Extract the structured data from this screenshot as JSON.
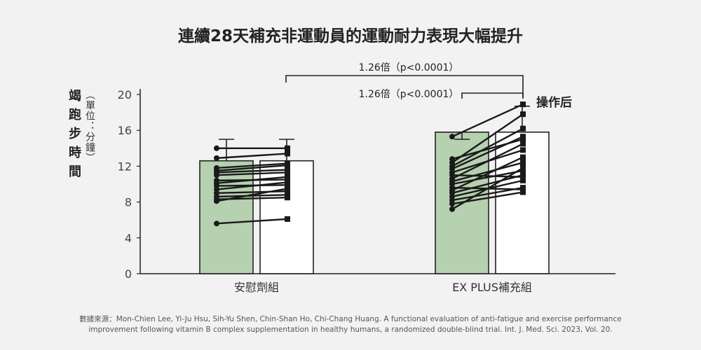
{
  "chart_data": {
    "type": "bar",
    "title": "連續28天補充非運動員的運動耐力表現大幅提升",
    "ylabel": "竭跑步時間",
    "yunit": "（單位：分鐘）",
    "ylim": [
      0,
      20
    ],
    "yticks": [
      0,
      4,
      8,
      12,
      16,
      20
    ],
    "categories": [
      "安慰劑組",
      "EX PLUS補充組"
    ],
    "series": [
      {
        "values": [
          12.6,
          15.8
        ],
        "color": "#b5d1b0"
      },
      {
        "values": [
          12.6,
          15.8
        ],
        "color": "#ffffff"
      }
    ],
    "error_tops": [
      [
        15.0,
        15.0
      ],
      [
        15.0,
        18.7
      ]
    ],
    "individual_lines": [
      [
        [
          5.6,
          6.1
        ],
        [
          8.1,
          9.5
        ],
        [
          8.3,
          8.5
        ],
        [
          8.6,
          8.8
        ],
        [
          9.0,
          9.2
        ],
        [
          9.4,
          10.2
        ],
        [
          9.8,
          9.9
        ],
        [
          10.1,
          10.8
        ],
        [
          10.4,
          10.5
        ],
        [
          11.0,
          11.3
        ],
        [
          11.3,
          11.6
        ],
        [
          11.5,
          12.1
        ],
        [
          11.8,
          12.3
        ],
        [
          12.9,
          13.4
        ],
        [
          14.0,
          14.0
        ]
      ],
      [
        [
          7.2,
          11.8
        ],
        [
          7.8,
          9.1
        ],
        [
          8.2,
          9.6
        ],
        [
          8.6,
          10.4
        ],
        [
          9.0,
          11.0
        ],
        [
          9.3,
          13.0
        ],
        [
          9.6,
          9.4
        ],
        [
          10.0,
          11.5
        ],
        [
          10.3,
          12.4
        ],
        [
          10.6,
          14.5
        ],
        [
          11.0,
          10.8
        ],
        [
          11.3,
          13.8
        ],
        [
          11.7,
          15.3
        ],
        [
          12.0,
          16.2
        ],
        [
          12.4,
          17.8
        ],
        [
          12.8,
          15.0
        ],
        [
          15.3,
          18.9
        ]
      ]
    ],
    "annotations": [
      {
        "text": "1.26倍（p<0.0001）",
        "from": "placebo-bar-1",
        "to": "ex-bar-2"
      },
      {
        "text": "1.26倍（p<0.0001）",
        "from": "ex-bar-2-pre",
        "to": "ex-bar-2"
      }
    ],
    "callout": "操作后"
  },
  "source": {
    "line1": "數據來源：Mon-Chien Lee, Yi-Ju Hsu, Sih-Yu Shen, Chin-Shan Ho, Chi-Chang Huang. A functional evaluation of anti-fatigue and exercise performance",
    "line2": "improvement following vitamin B complex supplementation in healthy humans, a randomized double-blind trial. Int. J. Med. Sci. 2023, Vol. 20."
  }
}
